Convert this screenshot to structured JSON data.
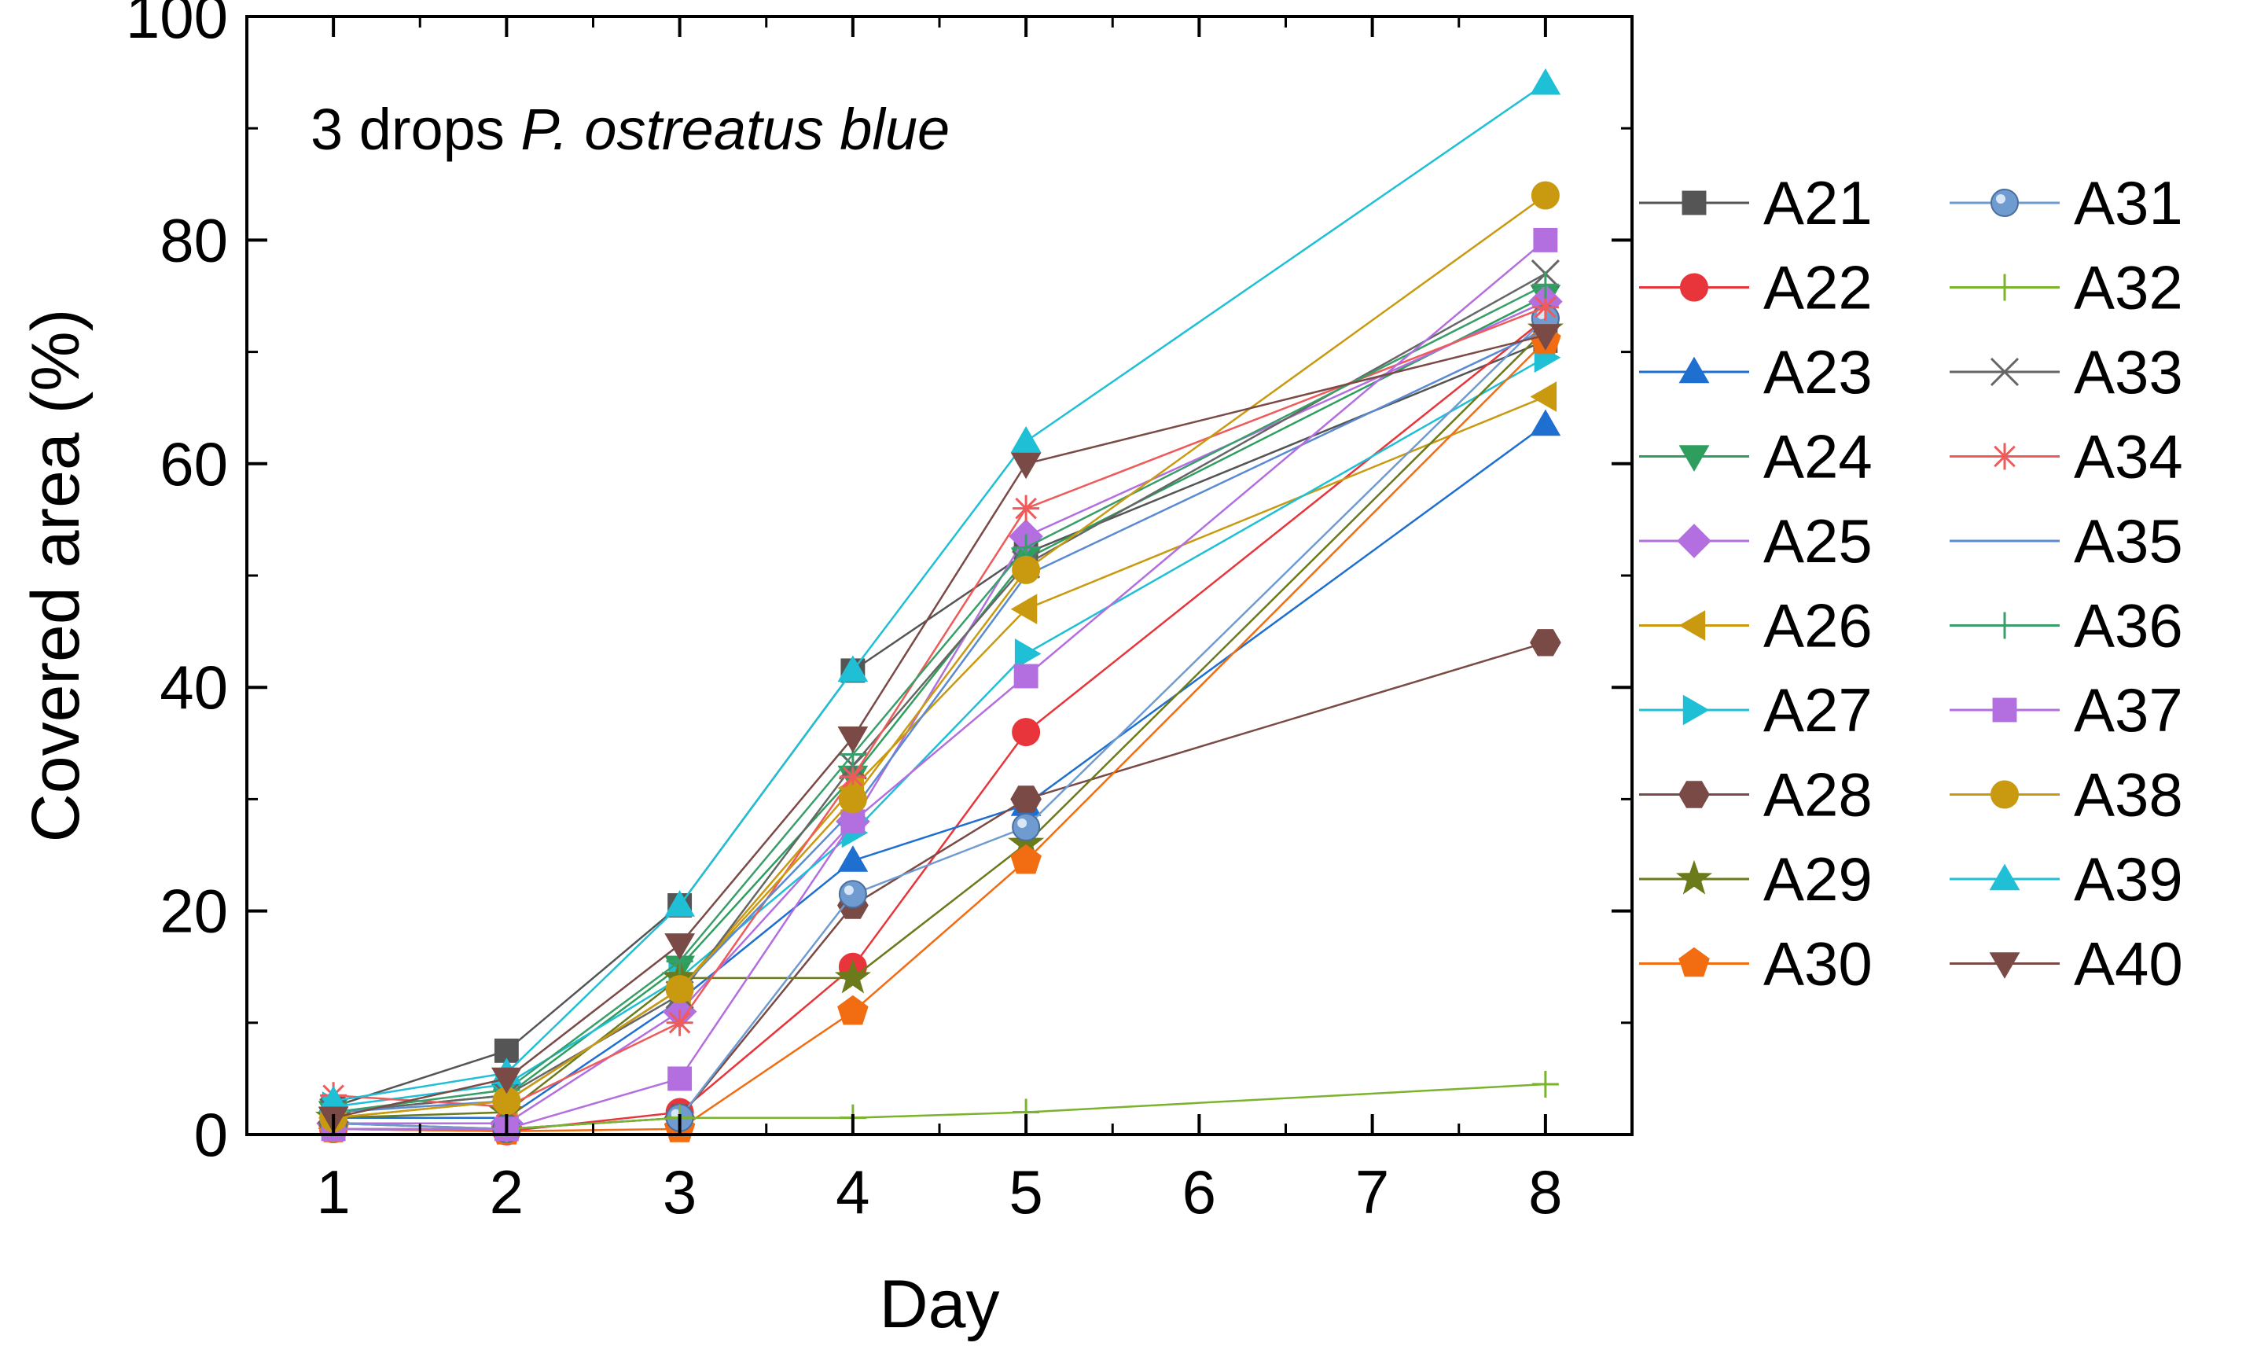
{
  "chart_data": {
    "type": "line",
    "title": "",
    "annotation": {
      "prefix": "3 drops ",
      "italic": "P. ostreatus blue"
    },
    "xlabel": "Day",
    "ylabel": "Covered area (%)",
    "xlim": [
      0.5,
      8.5
    ],
    "ylim": [
      0,
      100
    ],
    "xticks": [
      1,
      2,
      3,
      4,
      5,
      6,
      7,
      8
    ],
    "yticks": [
      0,
      20,
      40,
      60,
      80,
      100
    ],
    "x": [
      1,
      2,
      3,
      4,
      5,
      8
    ],
    "legend_position": "right",
    "series": [
      {
        "name": "A21",
        "color": "#555555",
        "marker": "square",
        "values": [
          2.5,
          7.5,
          20.5,
          41.5,
          52,
          71
        ]
      },
      {
        "name": "A22",
        "color": "#e8353b",
        "marker": "circle",
        "values": [
          0.5,
          0.3,
          2,
          15,
          36,
          73
        ]
      },
      {
        "name": "A23",
        "color": "#1f6fd1",
        "marker": "triangle-up",
        "values": [
          1.5,
          1.5,
          12,
          24.5,
          29.5,
          63.5
        ]
      },
      {
        "name": "A24",
        "color": "#2e9e5e",
        "marker": "triangle-down",
        "values": [
          2,
          3.5,
          15,
          32,
          51.5,
          75
        ]
      },
      {
        "name": "A25",
        "color": "#b36ee0",
        "marker": "diamond",
        "values": [
          1,
          1,
          11,
          28,
          53.5,
          74.5
        ]
      },
      {
        "name": "A26",
        "color": "#c99a10",
        "marker": "triangle-left",
        "values": [
          1.5,
          3,
          13,
          31,
          47,
          66
        ]
      },
      {
        "name": "A27",
        "color": "#1fc0d6",
        "marker": "triangle-right",
        "values": [
          2.5,
          4.5,
          14,
          27,
          43,
          69.5
        ]
      },
      {
        "name": "A28",
        "color": "#7a4a46",
        "marker": "hexagon",
        "values": [
          1,
          0.5,
          1.5,
          20.5,
          30,
          44
        ]
      },
      {
        "name": "A29",
        "color": "#6b7a1a",
        "marker": "star",
        "values": [
          1.5,
          2,
          14,
          14,
          26,
          72
        ]
      },
      {
        "name": "A30",
        "color": "#f26c11",
        "marker": "pentagon",
        "values": [
          0.5,
          0.3,
          0.5,
          11,
          24.5,
          71
        ]
      },
      {
        "name": "A31",
        "color": "#6f9bd1",
        "marker": "sphere",
        "values": [
          1,
          0.5,
          1.5,
          21.5,
          27.5,
          73
        ]
      },
      {
        "name": "A32",
        "color": "#7ab32e",
        "marker": "plus",
        "values": [
          0.5,
          0.5,
          1.5,
          1.5,
          2,
          4.5
        ]
      },
      {
        "name": "A33",
        "color": "#666666",
        "marker": "x",
        "values": [
          2,
          3.5,
          12.5,
          33,
          51,
          77
        ]
      },
      {
        "name": "A34",
        "color": "#ef5a5a",
        "marker": "asterisk",
        "values": [
          3.5,
          2.5,
          10,
          32,
          56,
          74
        ]
      },
      {
        "name": "A35",
        "color": "#5a8ad1",
        "marker": "none",
        "values": [
          2,
          3,
          13,
          29,
          50,
          72
        ]
      },
      {
        "name": "A36",
        "color": "#3a9e6a",
        "marker": "plus",
        "values": [
          2,
          4,
          15.5,
          34,
          52.5,
          76
        ]
      },
      {
        "name": "A37",
        "color": "#b36ee0",
        "marker": "square",
        "values": [
          0.5,
          0.5,
          5,
          28,
          41,
          80
        ]
      },
      {
        "name": "A38",
        "color": "#c99a10",
        "marker": "circle",
        "values": [
          1.5,
          3,
          13,
          30,
          50.5,
          84
        ]
      },
      {
        "name": "A39",
        "color": "#1fc0d6",
        "marker": "triangle-up",
        "values": [
          3,
          5.5,
          20.5,
          41.5,
          62,
          94
        ]
      },
      {
        "name": "A40",
        "color": "#7a4a46",
        "marker": "triangle-down",
        "values": [
          1.5,
          5,
          17,
          35.5,
          60,
          71.5
        ]
      }
    ]
  }
}
